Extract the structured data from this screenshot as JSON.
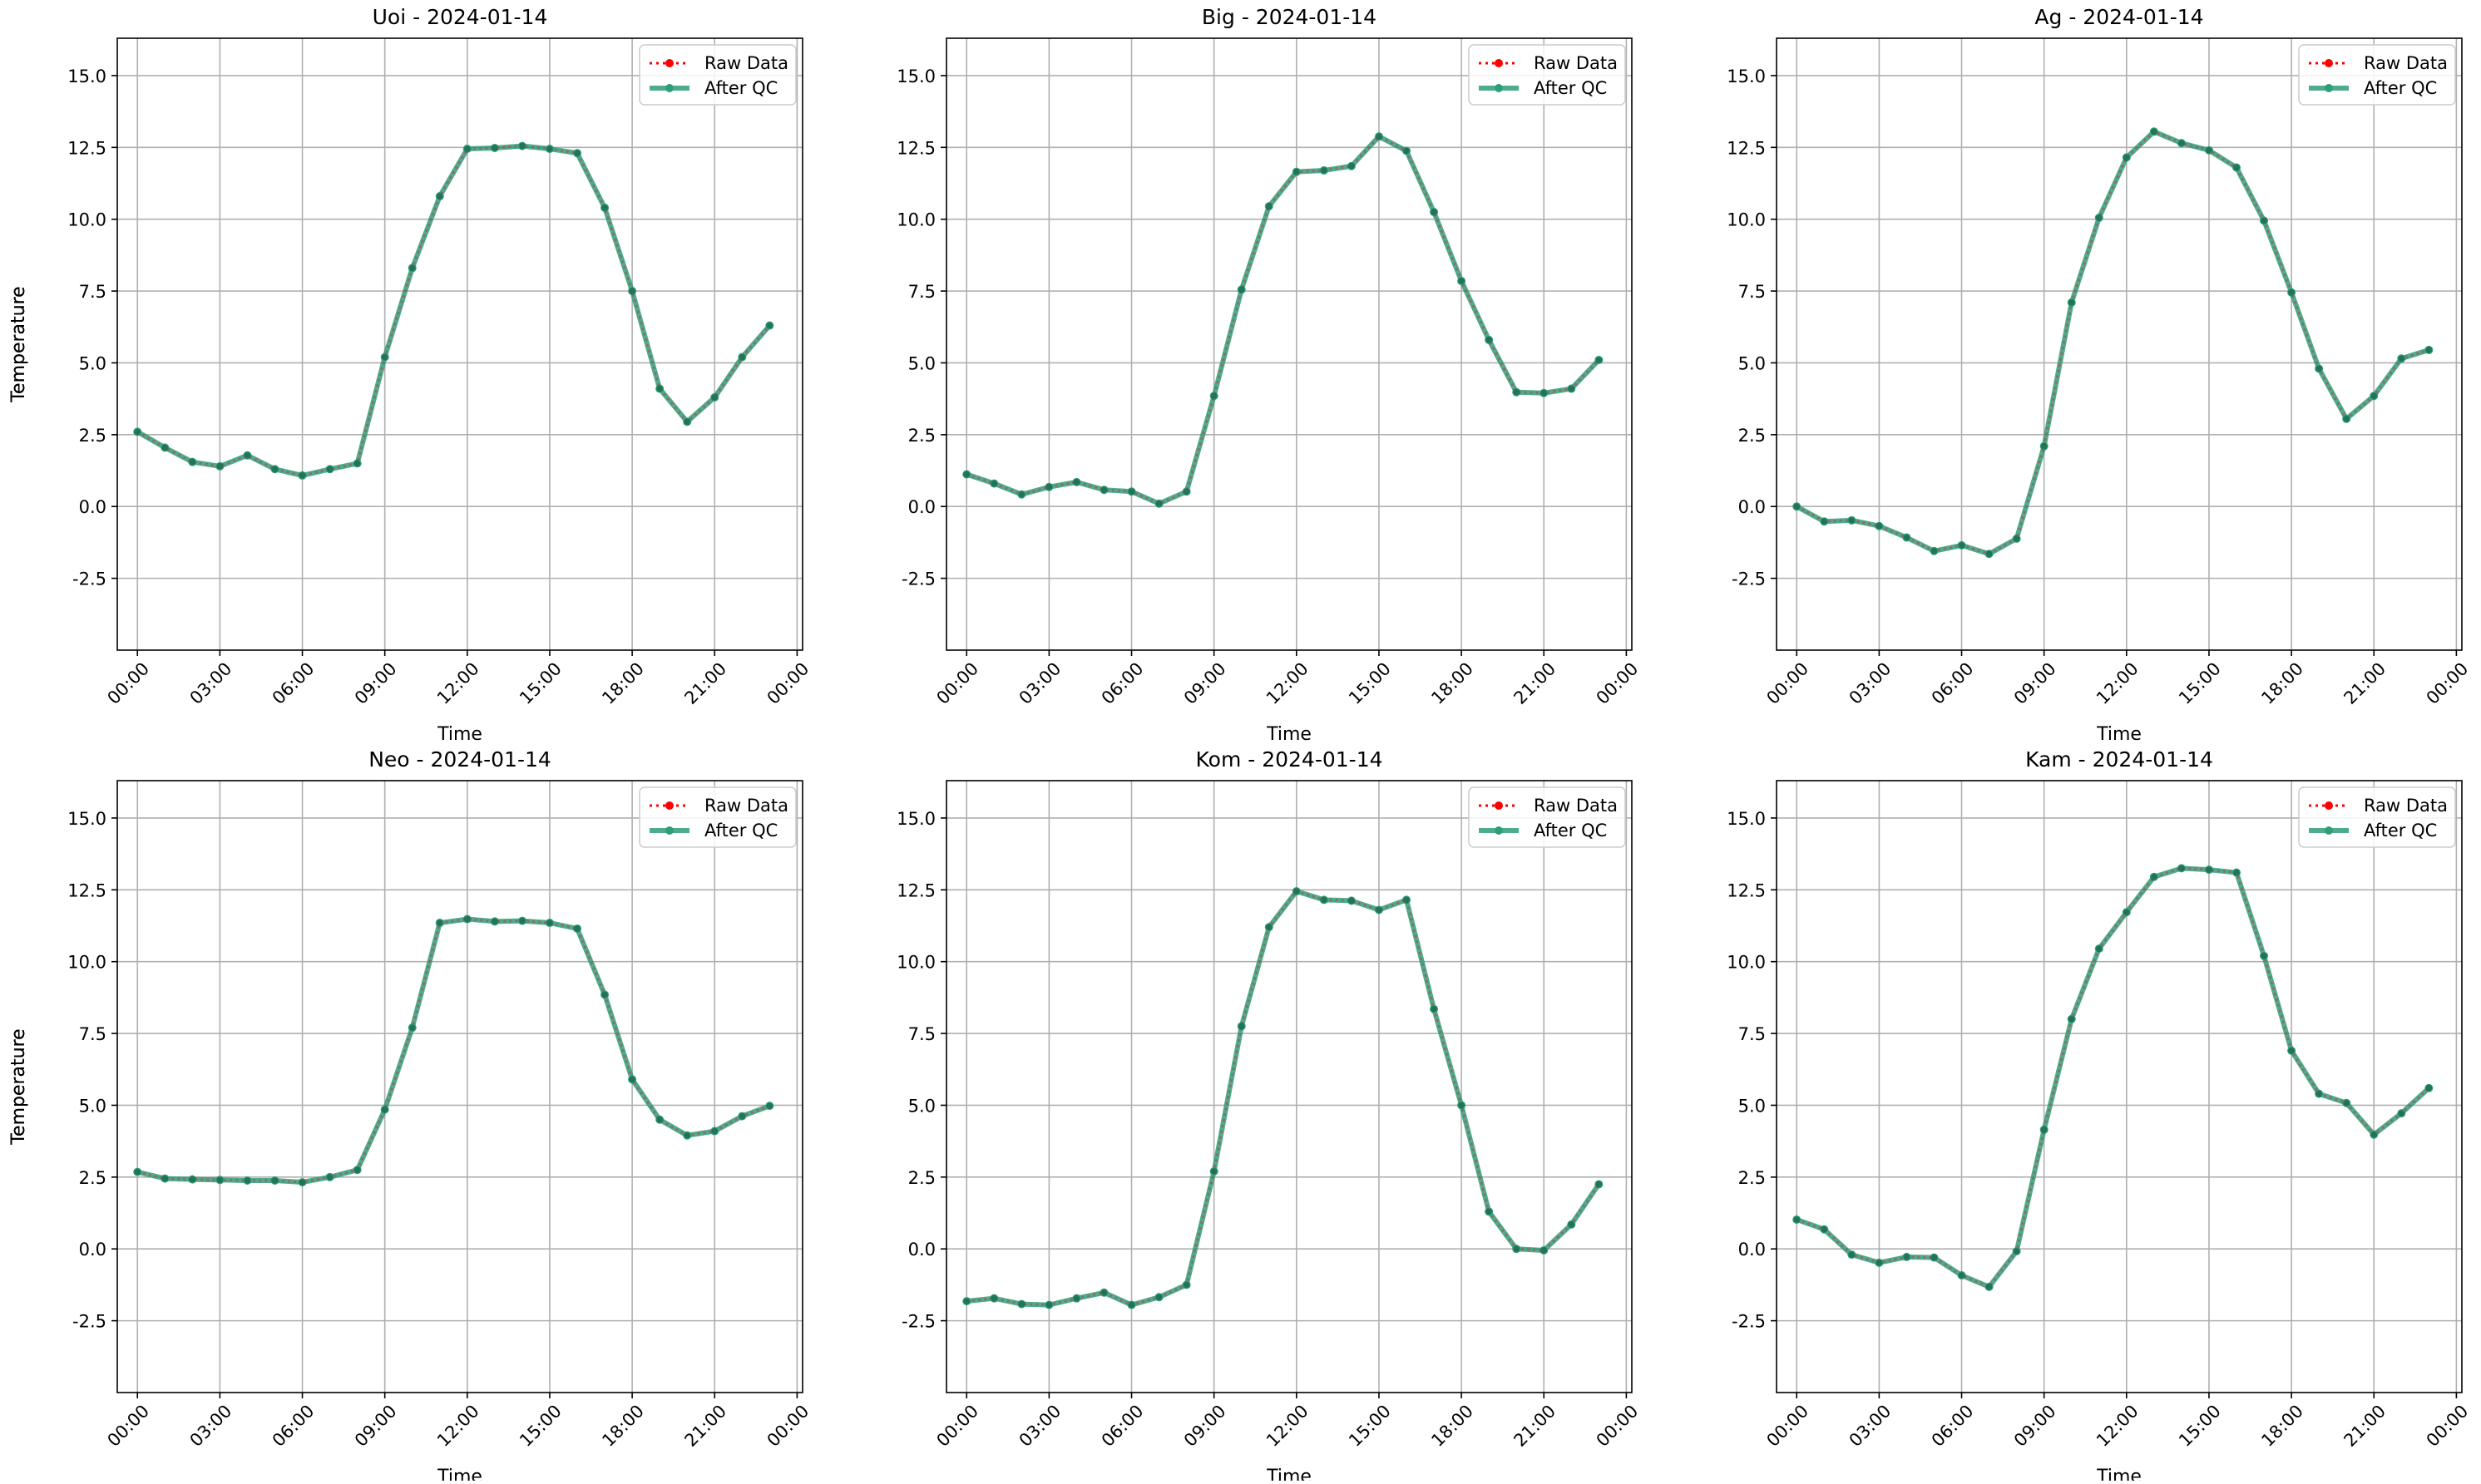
{
  "figure": {
    "colors": {
      "raw": "#ff0000",
      "qc": "#2e9e7a",
      "qc_marker": "#1d6b52",
      "grid": "#b0b0b0",
      "axis": "#000000"
    }
  },
  "chart_data": [
    {
      "type": "line",
      "title": "Uoi - 2024-01-14",
      "xlabel": "Time",
      "ylabel": "Temperature",
      "x": [
        "00:00",
        "01:00",
        "02:00",
        "03:00",
        "04:00",
        "05:00",
        "06:00",
        "07:00",
        "08:00",
        "09:00",
        "10:00",
        "11:00",
        "12:00",
        "13:00",
        "14:00",
        "15:00",
        "16:00",
        "17:00",
        "18:00",
        "19:00",
        "20:00",
        "21:00",
        "22:00",
        "23:00"
      ],
      "xticks": [
        "00:00",
        "03:00",
        "06:00",
        "09:00",
        "12:00",
        "15:00",
        "18:00",
        "21:00",
        "00:00"
      ],
      "xlim": [
        "2024-01-13 23:16",
        "2024-01-15 00:12"
      ],
      "yticks": [
        -2.5,
        0.0,
        2.5,
        5.0,
        7.5,
        10.0,
        12.5,
        15.0
      ],
      "ylim": [
        -5,
        16.3
      ],
      "grid": true,
      "legend": "top-right",
      "series": [
        {
          "name": "Raw Data",
          "values": [
            2.6,
            2.05,
            1.55,
            1.4,
            1.78,
            1.3,
            1.08,
            1.3,
            1.5,
            5.2,
            8.3,
            10.8,
            12.45,
            12.48,
            12.55,
            12.45,
            12.3,
            10.4,
            7.5,
            4.1,
            2.95,
            3.8,
            5.2,
            6.3
          ]
        },
        {
          "name": "After QC",
          "values": [
            2.6,
            2.05,
            1.55,
            1.4,
            1.78,
            1.3,
            1.08,
            1.3,
            1.5,
            5.2,
            8.3,
            10.8,
            12.45,
            12.48,
            12.55,
            12.45,
            12.3,
            10.4,
            7.5,
            4.1,
            2.95,
            3.8,
            5.2,
            6.3
          ]
        }
      ]
    },
    {
      "type": "line",
      "title": "Big - 2024-01-14",
      "xlabel": "Time",
      "ylabel": "Temperature",
      "x": [
        "00:00",
        "01:00",
        "02:00",
        "03:00",
        "04:00",
        "05:00",
        "06:00",
        "07:00",
        "08:00",
        "09:00",
        "10:00",
        "11:00",
        "12:00",
        "13:00",
        "14:00",
        "15:00",
        "16:00",
        "17:00",
        "18:00",
        "19:00",
        "20:00",
        "21:00",
        "22:00",
        "23:00"
      ],
      "xticks": [
        "00:00",
        "03:00",
        "06:00",
        "09:00",
        "12:00",
        "15:00",
        "18:00",
        "21:00",
        "00:00"
      ],
      "xlim": [
        "2024-01-13 23:16",
        "2024-01-15 00:12"
      ],
      "yticks": [
        -2.5,
        0.0,
        2.5,
        5.0,
        7.5,
        10.0,
        12.5,
        15.0
      ],
      "ylim": [
        -5,
        16.3
      ],
      "grid": true,
      "legend": "top-right",
      "series": [
        {
          "name": "Raw Data",
          "values": [
            1.12,
            0.8,
            0.42,
            0.68,
            0.85,
            0.58,
            0.52,
            0.1,
            0.52,
            3.85,
            7.55,
            10.45,
            11.65,
            11.7,
            11.85,
            12.88,
            12.38,
            10.25,
            7.85,
            5.8,
            3.98,
            3.95,
            4.1,
            5.1
          ]
        },
        {
          "name": "After QC",
          "values": [
            1.12,
            0.8,
            0.42,
            0.68,
            0.85,
            0.58,
            0.52,
            0.1,
            0.52,
            3.85,
            7.55,
            10.45,
            11.65,
            11.7,
            11.85,
            12.88,
            12.38,
            10.25,
            7.85,
            5.8,
            3.98,
            3.95,
            4.1,
            5.1
          ]
        }
      ]
    },
    {
      "type": "line",
      "title": "Ag - 2024-01-14",
      "xlabel": "Time",
      "ylabel": "Temperature",
      "x": [
        "00:00",
        "01:00",
        "02:00",
        "03:00",
        "04:00",
        "05:00",
        "06:00",
        "07:00",
        "08:00",
        "09:00",
        "10:00",
        "11:00",
        "12:00",
        "13:00",
        "14:00",
        "15:00",
        "16:00",
        "17:00",
        "18:00",
        "19:00",
        "20:00",
        "21:00",
        "22:00",
        "23:00"
      ],
      "xticks": [
        "00:00",
        "03:00",
        "06:00",
        "09:00",
        "12:00",
        "15:00",
        "18:00",
        "21:00",
        "00:00"
      ],
      "xlim": [
        "2024-01-13 23:16",
        "2024-01-15 00:12"
      ],
      "yticks": [
        -2.5,
        0.0,
        2.5,
        5.0,
        7.5,
        10.0,
        12.5,
        15.0
      ],
      "ylim": [
        -5,
        16.3
      ],
      "grid": true,
      "legend": "top-right",
      "series": [
        {
          "name": "Raw Data",
          "values": [
            0.0,
            -0.52,
            -0.48,
            -0.68,
            -1.08,
            -1.55,
            -1.35,
            -1.65,
            -1.12,
            2.1,
            7.1,
            10.05,
            12.15,
            13.05,
            12.65,
            12.4,
            11.8,
            9.95,
            7.45,
            4.8,
            3.05,
            3.85,
            5.15,
            5.45
          ]
        },
        {
          "name": "After QC",
          "values": [
            0.0,
            -0.52,
            -0.48,
            -0.68,
            -1.08,
            -1.55,
            -1.35,
            -1.65,
            -1.12,
            2.1,
            7.1,
            10.05,
            12.15,
            13.05,
            12.65,
            12.4,
            11.8,
            9.95,
            7.45,
            4.8,
            3.05,
            3.85,
            5.15,
            5.45
          ]
        }
      ]
    },
    {
      "type": "line",
      "title": "Neo - 2024-01-14",
      "xlabel": "Time",
      "ylabel": "Temperature",
      "x": [
        "00:00",
        "01:00",
        "02:00",
        "03:00",
        "04:00",
        "05:00",
        "06:00",
        "07:00",
        "08:00",
        "09:00",
        "10:00",
        "11:00",
        "12:00",
        "13:00",
        "14:00",
        "15:00",
        "16:00",
        "17:00",
        "18:00",
        "19:00",
        "20:00",
        "21:00",
        "22:00",
        "23:00"
      ],
      "xticks": [
        "00:00",
        "03:00",
        "06:00",
        "09:00",
        "12:00",
        "15:00",
        "18:00",
        "21:00",
        "00:00"
      ],
      "xlim": [
        "2024-01-13 23:16",
        "2024-01-15 00:12"
      ],
      "yticks": [
        -2.5,
        0.0,
        2.5,
        5.0,
        7.5,
        10.0,
        12.5,
        15.0
      ],
      "ylim": [
        -5,
        16.3
      ],
      "grid": true,
      "legend": "top-right",
      "series": [
        {
          "name": "Raw Data",
          "values": [
            2.68,
            2.45,
            2.42,
            2.4,
            2.38,
            2.38,
            2.32,
            2.5,
            2.75,
            4.85,
            7.7,
            11.35,
            11.48,
            11.4,
            11.42,
            11.35,
            11.15,
            8.85,
            5.9,
            4.5,
            3.95,
            4.1,
            4.62,
            4.98
          ]
        },
        {
          "name": "After QC",
          "values": [
            2.68,
            2.45,
            2.42,
            2.4,
            2.38,
            2.38,
            2.32,
            2.5,
            2.75,
            4.85,
            7.7,
            11.35,
            11.48,
            11.4,
            11.42,
            11.35,
            11.15,
            8.85,
            5.9,
            4.5,
            3.95,
            4.1,
            4.62,
            4.98
          ]
        }
      ]
    },
    {
      "type": "line",
      "title": "Kom - 2024-01-14",
      "xlabel": "Time",
      "ylabel": "Temperature",
      "x": [
        "00:00",
        "01:00",
        "02:00",
        "03:00",
        "04:00",
        "05:00",
        "06:00",
        "07:00",
        "08:00",
        "09:00",
        "10:00",
        "11:00",
        "12:00",
        "13:00",
        "14:00",
        "15:00",
        "16:00",
        "17:00",
        "18:00",
        "19:00",
        "20:00",
        "21:00",
        "22:00",
        "23:00"
      ],
      "xticks": [
        "00:00",
        "03:00",
        "06:00",
        "09:00",
        "12:00",
        "15:00",
        "18:00",
        "21:00",
        "00:00"
      ],
      "xlim": [
        "2024-01-13 23:16",
        "2024-01-15 00:12"
      ],
      "yticks": [
        -2.5,
        0.0,
        2.5,
        5.0,
        7.5,
        10.0,
        12.5,
        15.0
      ],
      "ylim": [
        -5,
        16.3
      ],
      "grid": true,
      "legend": "top-right",
      "series": [
        {
          "name": "Raw Data",
          "values": [
            -1.82,
            -1.72,
            -1.92,
            -1.95,
            -1.72,
            -1.52,
            -1.95,
            -1.68,
            -1.25,
            2.7,
            7.75,
            11.2,
            12.45,
            12.15,
            12.12,
            11.8,
            12.15,
            8.35,
            5.0,
            1.3,
            0.0,
            -0.05,
            0.85,
            2.25
          ]
        },
        {
          "name": "After QC",
          "values": [
            -1.82,
            -1.72,
            -1.92,
            -1.95,
            -1.72,
            -1.52,
            -1.95,
            -1.68,
            -1.25,
            2.7,
            7.75,
            11.2,
            12.45,
            12.15,
            12.12,
            11.8,
            12.15,
            8.35,
            5.0,
            1.3,
            0.0,
            -0.05,
            0.85,
            2.25
          ]
        }
      ]
    },
    {
      "type": "line",
      "title": "Kam - 2024-01-14",
      "xlabel": "Time",
      "ylabel": "Temperature",
      "x": [
        "00:00",
        "01:00",
        "02:00",
        "03:00",
        "04:00",
        "05:00",
        "06:00",
        "07:00",
        "08:00",
        "09:00",
        "10:00",
        "11:00",
        "12:00",
        "13:00",
        "14:00",
        "15:00",
        "16:00",
        "17:00",
        "18:00",
        "19:00",
        "20:00",
        "21:00",
        "22:00",
        "23:00"
      ],
      "xticks": [
        "00:00",
        "03:00",
        "06:00",
        "09:00",
        "12:00",
        "15:00",
        "18:00",
        "21:00",
        "00:00"
      ],
      "xlim": [
        "2024-01-13 23:16",
        "2024-01-15 00:12"
      ],
      "yticks": [
        -2.5,
        0.0,
        2.5,
        5.0,
        7.5,
        10.0,
        12.5,
        15.0
      ],
      "ylim": [
        -5,
        16.3
      ],
      "grid": true,
      "legend": "top-right",
      "series": [
        {
          "name": "Raw Data",
          "values": [
            1.02,
            0.68,
            -0.2,
            -0.48,
            -0.28,
            -0.3,
            -0.92,
            -1.32,
            -0.08,
            4.15,
            8.0,
            10.45,
            11.72,
            12.95,
            13.25,
            13.2,
            13.1,
            10.2,
            6.9,
            5.4,
            5.08,
            3.98,
            4.72,
            5.6
          ]
        },
        {
          "name": "After QC",
          "values": [
            1.02,
            0.68,
            -0.2,
            -0.48,
            -0.28,
            -0.3,
            -0.92,
            -1.32,
            -0.08,
            4.15,
            8.0,
            10.45,
            11.72,
            12.95,
            13.25,
            13.2,
            13.1,
            10.2,
            6.9,
            5.4,
            5.08,
            3.98,
            4.72,
            5.6
          ]
        }
      ]
    }
  ]
}
